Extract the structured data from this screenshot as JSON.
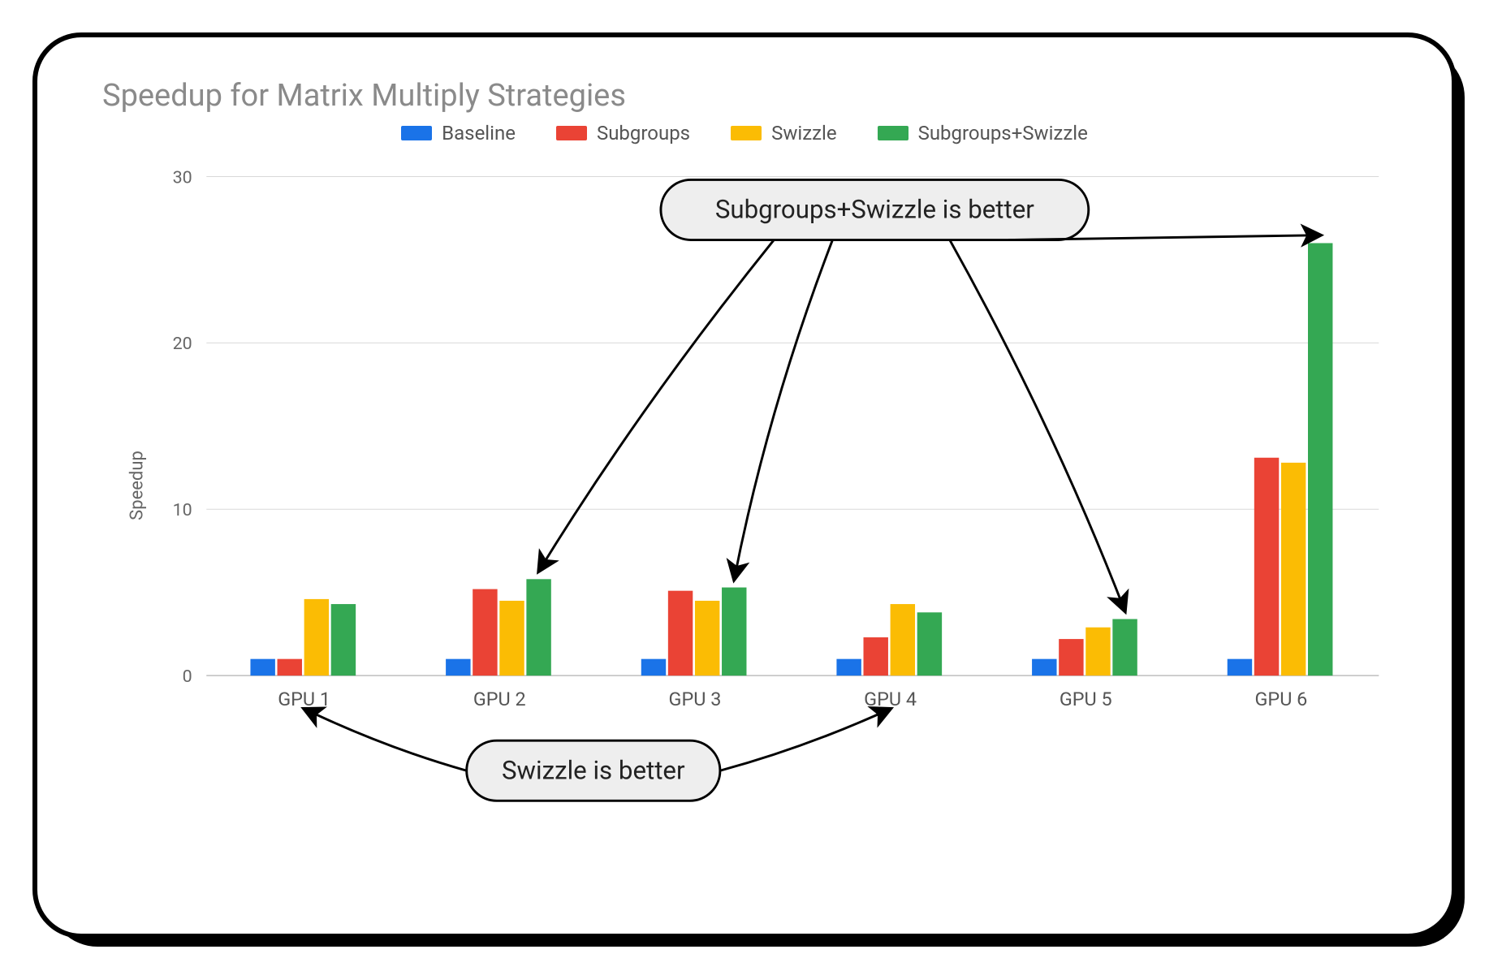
{
  "chart": {
    "type": "bar",
    "title": "Speedup for Matrix Multiply Strategies",
    "ylabel": "Speedup",
    "ylim": [
      0,
      30
    ],
    "yticks": [
      0,
      10,
      20,
      30
    ],
    "categories": [
      "GPU 1",
      "GPU 2",
      "GPU 3",
      "GPU 4",
      "GPU 5",
      "GPU 6"
    ],
    "series": [
      {
        "name": "Baseline",
        "color": "#1a73e8",
        "values": [
          1.0,
          1.0,
          1.0,
          1.0,
          1.0,
          1.0
        ]
      },
      {
        "name": "Subgroups",
        "color": "#ea4335",
        "values": [
          1.0,
          5.2,
          5.1,
          2.3,
          2.2,
          13.1
        ]
      },
      {
        "name": "Swizzle",
        "color": "#fbbc04",
        "values": [
          4.6,
          4.5,
          4.5,
          4.3,
          2.9,
          12.8
        ]
      },
      {
        "name": "Subgroups+Swizzle",
        "color": "#34a853",
        "values": [
          4.3,
          5.8,
          5.3,
          3.8,
          3.4,
          26.0
        ]
      }
    ],
    "title_fontsize": 38,
    "legend_fontsize": 24,
    "axis_fontsize": 22,
    "grid_color": "#d9d9d9",
    "background_color": "#ffffff",
    "bar_group_width": 0.55,
    "callouts": {
      "top": {
        "text": "Subgroups+Swizzle is better",
        "targets": [
          "GPU 2",
          "GPU 3",
          "GPU 5",
          "GPU 6"
        ]
      },
      "bottom": {
        "text": "Swizzle is better",
        "targets": [
          "GPU 1",
          "GPU 4"
        ]
      }
    }
  }
}
